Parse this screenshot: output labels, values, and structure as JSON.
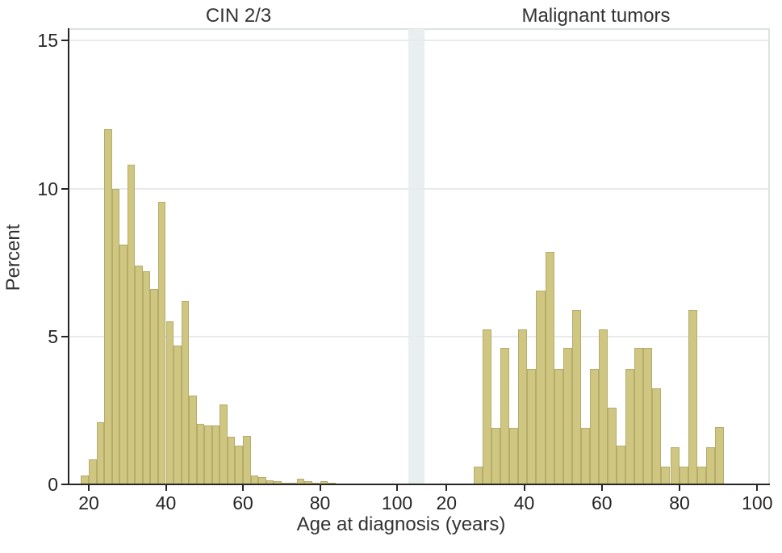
{
  "chart_data": {
    "type": "bar",
    "subtype": "histogram-two-panel",
    "xlabel": "Age at diagnosis (years)",
    "ylabel": "Percent",
    "ylim": [
      0,
      15
    ],
    "yticks": [
      0,
      5,
      10,
      15
    ],
    "xticks": [
      20,
      40,
      60,
      80,
      100
    ],
    "grid": "horizontal-light",
    "bar_color": "#cfc781",
    "bar_border_color": "#b5ac6a",
    "axis_color": "#262626",
    "gridline_color": "#e9ebeb",
    "divider_color": "#e9efee",
    "panels": [
      {
        "title": "CIN 2/3",
        "bin_start_age": 18,
        "bin_width_years": 2,
        "values_percent": [
          0.3,
          0.85,
          2.1,
          12.0,
          10.0,
          8.1,
          10.8,
          7.4,
          7.2,
          6.6,
          9.55,
          5.5,
          4.7,
          6.2,
          3.0,
          2.05,
          2.0,
          2.0,
          2.7,
          1.6,
          1.3,
          1.65,
          0.3,
          0.25,
          0.15,
          0.1,
          0.05,
          0.05,
          0.2,
          0.1,
          0.05,
          0.1,
          0.05
        ]
      },
      {
        "title": "Malignant tumors",
        "bin_start_age": 27,
        "bin_width_years": 2.3,
        "values_percent": [
          0.6,
          5.25,
          1.9,
          4.6,
          1.9,
          5.25,
          3.9,
          6.55,
          7.85,
          3.9,
          4.6,
          5.9,
          1.9,
          3.9,
          5.25,
          2.6,
          1.3,
          3.9,
          4.6,
          4.6,
          3.25,
          0.6,
          1.25,
          0.6,
          5.9,
          0.6,
          1.25,
          1.95
        ]
      }
    ]
  }
}
